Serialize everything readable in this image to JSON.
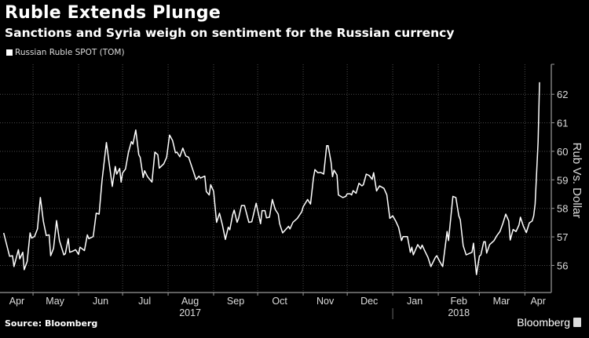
{
  "header": {
    "title": "Ruble Extends Plunge",
    "subtitle": "Sanctions and Syria weigh on sentiment for the Russian currency"
  },
  "footer": {
    "source": "Source: Bloomberg",
    "brand": "Bloomberg"
  },
  "colors": {
    "background": "#000000",
    "line": "#ffffff",
    "grid": "#555555",
    "axis": "#999999"
  },
  "chart_data": {
    "type": "line",
    "title": "Ruble Extends Plunge",
    "subtitle": "Sanctions and Syria weigh on sentiment for the Russian currency",
    "legend": [
      "Russian Ruble SPOT (TOM)"
    ],
    "legend_position": "top-left",
    "ylabel": "Rub Vs. Dollar",
    "y_axis_side": "right",
    "xlabel": "",
    "x_unit": "days since 2017-04-01",
    "xlim": [
      7.5,
      383
    ],
    "ylim": [
      55.05,
      63.05
    ],
    "yticks": [
      56,
      57,
      58,
      59,
      60,
      61,
      62
    ],
    "grid": true,
    "month_boundaries": [
      30,
      61,
      91,
      122,
      153,
      183,
      214,
      244,
      275,
      306,
      334,
      365
    ],
    "month_labels": [
      {
        "label": "Apr",
        "center": 19
      },
      {
        "label": "May",
        "center": 45
      },
      {
        "label": "Jun",
        "center": 76
      },
      {
        "label": "Jul",
        "center": 106
      },
      {
        "label": "Aug",
        "center": 137
      },
      {
        "label": "Sep",
        "center": 168
      },
      {
        "label": "Oct",
        "center": 198
      },
      {
        "label": "Nov",
        "center": 229
      },
      {
        "label": "Dec",
        "center": 259
      },
      {
        "label": "Jan",
        "center": 290
      },
      {
        "label": "Feb",
        "center": 320
      },
      {
        "label": "Mar",
        "center": 349
      },
      {
        "label": "Apr",
        "center": 374
      }
    ],
    "year_labels": [
      {
        "label": "2017",
        "center": 137
      },
      {
        "label": "2018",
        "center": 320
      }
    ],
    "year_separator": 275,
    "series": [
      {
        "name": "Russian Ruble SPOT (TOM)",
        "x": [
          10,
          14,
          16,
          17,
          20,
          21,
          23,
          24,
          26,
          28,
          29,
          31,
          33,
          35,
          37,
          39,
          41,
          42,
          44,
          46,
          48,
          51,
          52,
          54,
          55,
          57,
          59,
          61,
          62,
          65,
          67,
          68,
          71,
          73,
          75,
          77,
          80,
          82,
          84,
          86,
          87,
          89,
          90,
          91,
          93,
          95,
          97,
          98,
          100,
          102,
          103,
          105,
          106,
          108,
          111,
          113,
          115,
          116,
          119,
          121,
          123,
          125,
          127,
          128,
          130,
          132,
          134,
          136,
          139,
          141,
          143,
          144,
          147,
          148,
          150,
          151,
          153,
          155,
          157,
          159,
          161,
          163,
          164,
          166,
          167,
          169,
          170,
          172,
          174,
          177,
          179,
          182,
          185,
          186,
          188,
          189,
          191,
          193,
          195,
          197,
          198,
          200,
          204,
          205,
          207,
          210,
          213,
          214,
          217,
          219,
          221,
          222,
          224,
          226,
          228,
          230,
          231,
          233,
          234,
          235,
          237,
          238,
          241,
          243,
          244,
          246,
          247,
          248,
          250,
          252,
          254,
          255,
          257,
          259,
          261,
          262,
          264,
          266,
          269,
          271,
          273,
          275,
          277,
          279,
          281,
          282,
          285,
          287,
          288,
          289,
          292,
          294,
          295,
          297,
          299,
          301,
          304,
          305,
          307,
          309,
          312,
          313,
          316,
          318,
          320,
          321,
          323,
          325,
          329,
          330,
          332,
          334,
          335,
          337,
          338,
          339,
          341,
          344,
          346,
          348,
          350,
          352,
          354,
          355,
          357,
          359,
          361,
          362,
          364,
          366,
          368,
          370,
          371,
          372,
          374,
          375
        ],
        "values": [
          57.14,
          56.32,
          56.34,
          55.96,
          56.55,
          56.23,
          56.46,
          55.85,
          56.14,
          57.14,
          56.96,
          57.01,
          57.28,
          58.38,
          57.55,
          57.05,
          57.07,
          56.34,
          56.6,
          57.57,
          56.87,
          56.37,
          56.41,
          56.94,
          56.46,
          56.5,
          56.55,
          56.39,
          56.64,
          56.52,
          57.07,
          56.94,
          57.01,
          57.83,
          57.8,
          58.97,
          60.31,
          59.52,
          58.77,
          59.47,
          59.2,
          59.4,
          58.92,
          59.24,
          59.38,
          59.97,
          60.34,
          60.25,
          60.75,
          59.88,
          59.79,
          59.08,
          59.32,
          59.11,
          58.92,
          59.97,
          59.88,
          59.41,
          59.56,
          59.79,
          60.57,
          60.38,
          59.95,
          59.97,
          59.81,
          60.11,
          59.84,
          59.79,
          59.33,
          59.01,
          59.13,
          59.06,
          59.13,
          58.59,
          58.47,
          58.83,
          58.6,
          57.51,
          57.83,
          57.42,
          56.91,
          57.34,
          57.25,
          57.78,
          57.94,
          57.51,
          57.65,
          58.1,
          58.1,
          57.51,
          57.53,
          58.18,
          57.46,
          57.92,
          57.92,
          57.67,
          57.69,
          58.31,
          57.96,
          57.8,
          57.46,
          57.14,
          57.37,
          57.28,
          57.51,
          57.65,
          57.88,
          58.06,
          58.31,
          58.15,
          59.06,
          59.36,
          59.25,
          59.26,
          59.2,
          60.2,
          60.2,
          59.61,
          59.11,
          59.34,
          59.17,
          58.47,
          58.38,
          58.42,
          58.51,
          58.51,
          58.47,
          58.62,
          58.53,
          58.88,
          58.79,
          58.83,
          59.2,
          59.15,
          59.02,
          59.25,
          58.61,
          58.79,
          58.7,
          58.47,
          57.65,
          57.74,
          57.56,
          57.33,
          56.87,
          57.01,
          57.01,
          56.46,
          56.64,
          56.37,
          56.73,
          56.58,
          56.71,
          56.49,
          56.28,
          55.96,
          56.28,
          56.34,
          56.14,
          55.96,
          57.19,
          56.87,
          58.42,
          58.38,
          57.74,
          57.6,
          56.69,
          56.37,
          56.46,
          56.78,
          55.68,
          56.32,
          56.37,
          56.83,
          56.83,
          56.43,
          56.73,
          56.87,
          57.05,
          57.19,
          57.47,
          57.8,
          57.56,
          56.89,
          57.26,
          57.19,
          57.42,
          57.69,
          57.37,
          57.15,
          57.49,
          57.56,
          57.74,
          58.15,
          60.34,
          62.42
        ]
      }
    ]
  }
}
